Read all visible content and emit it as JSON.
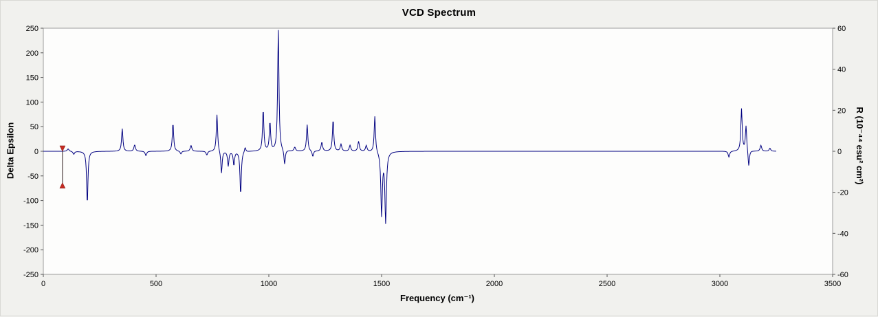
{
  "window": {
    "background_color": "#f1f1ee",
    "border_color": "#d8d8d4"
  },
  "chart_data": {
    "type": "line",
    "title": "VCD Spectrum",
    "xlabel": "Frequency (cm⁻¹)",
    "ylabel_left": "Delta Epsilon",
    "ylabel_right": "R (10⁻⁴⁴ esu² cm²)",
    "xlim": [
      0,
      3500
    ],
    "ylim_left": [
      -250,
      250
    ],
    "ylim_right": [
      -60,
      60
    ],
    "x_ticks": [
      0,
      500,
      1000,
      1500,
      2000,
      2500,
      3000,
      3500
    ],
    "y_ticks_left": [
      250,
      200,
      150,
      100,
      50,
      0,
      -50,
      -100,
      -150,
      -200,
      -250
    ],
    "y_ticks_right": [
      60,
      40,
      20,
      0,
      -20,
      -40,
      -60
    ],
    "grid": false,
    "legend": null,
    "line_color": "#000080",
    "marker_color": "#c62b22",
    "plot_background": "#fdfdfc",
    "frame_color": "#9b9b9b",
    "curve_model": "sum_of_lorentzians",
    "curve_x_range": [
      0,
      3250
    ],
    "series": [
      {
        "name": "VCD spectrum",
        "peaks_center_amplitude_hwhm": [
          [
            110,
            5,
            5
          ],
          [
            135,
            -6,
            4
          ],
          [
            195,
            -107,
            3.5
          ],
          [
            350,
            46,
            3.5
          ],
          [
            405,
            13,
            4
          ],
          [
            455,
            -9,
            4
          ],
          [
            575,
            57,
            3.5
          ],
          [
            610,
            -6,
            4
          ],
          [
            655,
            12,
            4
          ],
          [
            725,
            -8,
            4
          ],
          [
            770,
            76,
            3.5
          ],
          [
            790,
            -46,
            3.5
          ],
          [
            820,
            -30,
            3.5
          ],
          [
            845,
            -28,
            3.5
          ],
          [
            875,
            -88,
            3.5
          ],
          [
            895,
            10,
            3.5
          ],
          [
            975,
            84,
            3.5
          ],
          [
            1005,
            58,
            3.5
          ],
          [
            1042,
            246,
            3.5
          ],
          [
            1070,
            -30,
            3.5
          ],
          [
            1115,
            8,
            4
          ],
          [
            1170,
            54,
            3.5
          ],
          [
            1195,
            -12,
            3.5
          ],
          [
            1235,
            18,
            4
          ],
          [
            1285,
            64,
            3.5
          ],
          [
            1320,
            14,
            4
          ],
          [
            1360,
            12,
            4
          ],
          [
            1398,
            20,
            4
          ],
          [
            1432,
            12,
            4
          ],
          [
            1470,
            74,
            3.5
          ],
          [
            1500,
            -128,
            4
          ],
          [
            1518,
            -142,
            4
          ],
          [
            3040,
            -12,
            4
          ],
          [
            3096,
            86,
            3.5
          ],
          [
            3116,
            52,
            3.5
          ],
          [
            3128,
            -34,
            3.5
          ],
          [
            3182,
            12,
            4
          ],
          [
            3222,
            6,
            4
          ]
        ]
      }
    ],
    "selected_mode_marker": {
      "frequency": 85,
      "top_value": 0,
      "bottom_value": -75
    }
  }
}
